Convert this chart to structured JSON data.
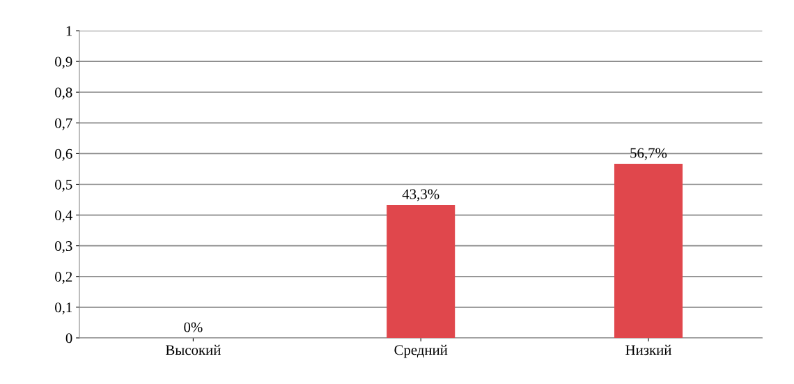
{
  "chart_data": {
    "type": "bar",
    "categories": [
      "Высокий",
      "Средний",
      "Низкий"
    ],
    "values": [
      0,
      0.433,
      0.567
    ],
    "value_labels": [
      "0%",
      "43,3%",
      "56,7%"
    ],
    "color": "#e0474c",
    "ylim": [
      0,
      1
    ],
    "yticks": [
      0,
      {
        "value": 0.1,
        "label": "0,1"
      },
      {
        "value": 0.2,
        "label": "0,2"
      },
      {
        "value": 0.3,
        "label": "0,3"
      },
      {
        "value": 0.4,
        "label": "0,4"
      },
      {
        "value": 0.5,
        "label": "0,5"
      },
      {
        "value": 0.6,
        "label": "0,6"
      },
      {
        "value": 0.7,
        "label": "0,7"
      },
      {
        "value": 0.8,
        "label": "0,8"
      },
      {
        "value": 0.9,
        "label": "0,9"
      },
      1
    ],
    "grid": "y",
    "legend": false
  }
}
